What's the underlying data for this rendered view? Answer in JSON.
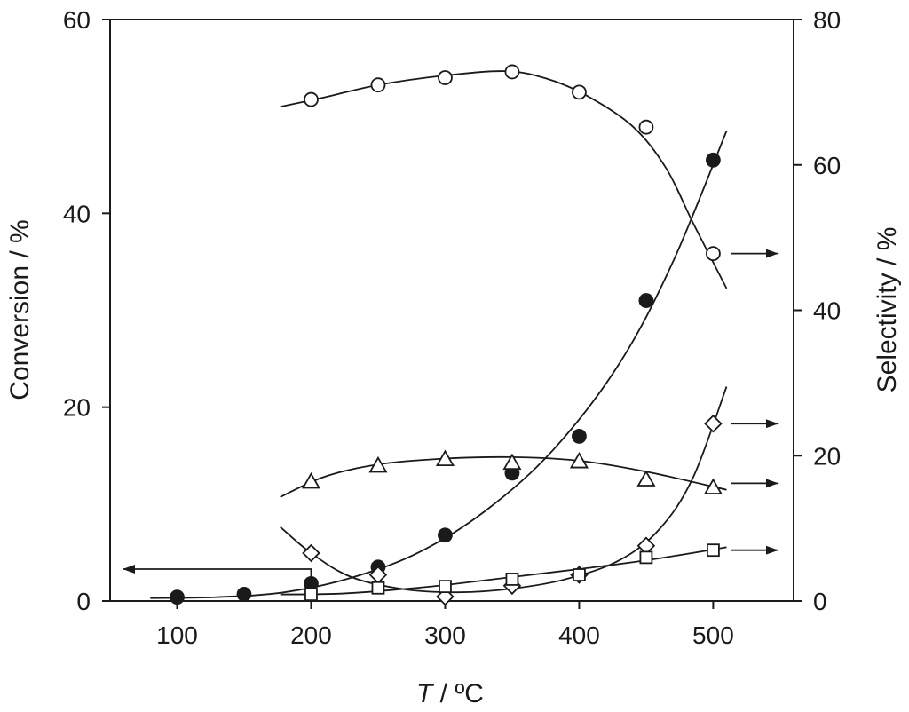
{
  "chart_data": {
    "type": "scatter",
    "title": "",
    "xlabel_italic": "T",
    "xlabel_rest": " / ºC",
    "ylabel_left": "Conversion / %",
    "ylabel_right": "Selectivity / %",
    "xlim": [
      50,
      560
    ],
    "ylim_left": [
      0,
      60
    ],
    "ylim_right": [
      0,
      80
    ],
    "x_ticks": [
      100,
      200,
      300,
      400,
      500
    ],
    "y_left_ticks": [
      0,
      20,
      40,
      60
    ],
    "y_right_ticks": [
      0,
      20,
      40,
      60,
      80
    ],
    "grid": false,
    "series": [
      {
        "marker": "filled-circle",
        "axis": "left",
        "x": [
          100,
          150,
          200,
          250,
          300,
          350,
          400,
          450,
          500
        ],
        "y": [
          0.4,
          0.7,
          1.8,
          3.5,
          6.8,
          13.2,
          17.0,
          31.0,
          45.5
        ],
        "fit": [
          [
            80,
            0.3
          ],
          [
            130,
            0.4
          ],
          [
            180,
            0.9
          ],
          [
            230,
            2.4
          ],
          [
            280,
            5.0
          ],
          [
            330,
            9.3
          ],
          [
            380,
            15.5
          ],
          [
            430,
            24.5
          ],
          [
            470,
            35.0
          ],
          [
            510,
            48.5
          ]
        ]
      },
      {
        "marker": "open-circle",
        "axis": "right",
        "x": [
          200,
          250,
          300,
          350,
          400,
          450,
          500
        ],
        "y": [
          69.0,
          71.0,
          72.0,
          72.8,
          70.0,
          65.2,
          47.8
        ],
        "fit": [
          [
            177,
            68.0
          ],
          [
            210,
            69.3
          ],
          [
            250,
            71.0
          ],
          [
            300,
            72.3
          ],
          [
            345,
            72.9
          ],
          [
            375,
            71.9
          ],
          [
            405,
            69.6
          ],
          [
            440,
            65.3
          ],
          [
            465,
            59.5
          ],
          [
            485,
            52.0
          ],
          [
            510,
            43.0
          ]
        ]
      },
      {
        "marker": "open-triangle",
        "axis": "right",
        "x": [
          200,
          250,
          300,
          350,
          400,
          450,
          500
        ],
        "y": [
          16.4,
          18.6,
          19.5,
          19.0,
          19.2,
          16.7,
          15.6
        ],
        "fit": [
          [
            177,
            14.3
          ],
          [
            210,
            17.1
          ],
          [
            250,
            18.8
          ],
          [
            300,
            19.6
          ],
          [
            350,
            19.8
          ],
          [
            400,
            19.3
          ],
          [
            450,
            17.8
          ],
          [
            510,
            15.3
          ]
        ]
      },
      {
        "marker": "open-diamond",
        "axis": "right",
        "x": [
          200,
          250,
          300,
          350,
          400,
          450,
          500
        ],
        "y": [
          6.6,
          3.6,
          0.6,
          2.1,
          3.6,
          7.6,
          24.4
        ],
        "fit": [
          [
            177,
            10.2
          ],
          [
            200,
            6.6
          ],
          [
            230,
            3.3
          ],
          [
            270,
            1.6
          ],
          [
            310,
            1.2
          ],
          [
            350,
            1.7
          ],
          [
            390,
            3.0
          ],
          [
            430,
            5.6
          ],
          [
            460,
            9.9
          ],
          [
            485,
            17.0
          ],
          [
            510,
            29.5
          ]
        ]
      },
      {
        "marker": "open-square",
        "axis": "right",
        "x": [
          200,
          250,
          300,
          350,
          400,
          450,
          500
        ],
        "y": [
          0.9,
          1.8,
          2.0,
          3.0,
          3.6,
          6.0,
          7.0
        ],
        "fit": [
          [
            177,
            0.9
          ],
          [
            220,
            1.0
          ],
          [
            260,
            1.5
          ],
          [
            300,
            2.2
          ],
          [
            350,
            3.3
          ],
          [
            400,
            4.4
          ],
          [
            450,
            5.6
          ],
          [
            510,
            7.4
          ]
        ]
      }
    ],
    "annotations": [
      {
        "kind": "arrow-to-axis",
        "direction": "left",
        "axis": "left",
        "from_x": 200,
        "from_y": 0.5,
        "to_x": 60,
        "to_y": 3.3
      },
      {
        "kind": "arrow-to-axis",
        "direction": "right",
        "axis": "right",
        "from_x": 500,
        "from_y": 47.8,
        "to_x": 548,
        "to_y": 47.8
      },
      {
        "kind": "arrow-to-axis",
        "direction": "right",
        "axis": "right",
        "from_x": 500,
        "from_y": 24.4,
        "to_x": 548,
        "to_y": 24.4
      },
      {
        "kind": "arrow-to-axis",
        "direction": "right",
        "axis": "right",
        "from_x": 500,
        "from_y": 16.2,
        "to_x": 548,
        "to_y": 16.2
      },
      {
        "kind": "arrow-to-axis",
        "direction": "right",
        "axis": "right",
        "from_x": 500,
        "from_y": 7.0,
        "to_x": 548,
        "to_y": 7.0
      }
    ]
  }
}
